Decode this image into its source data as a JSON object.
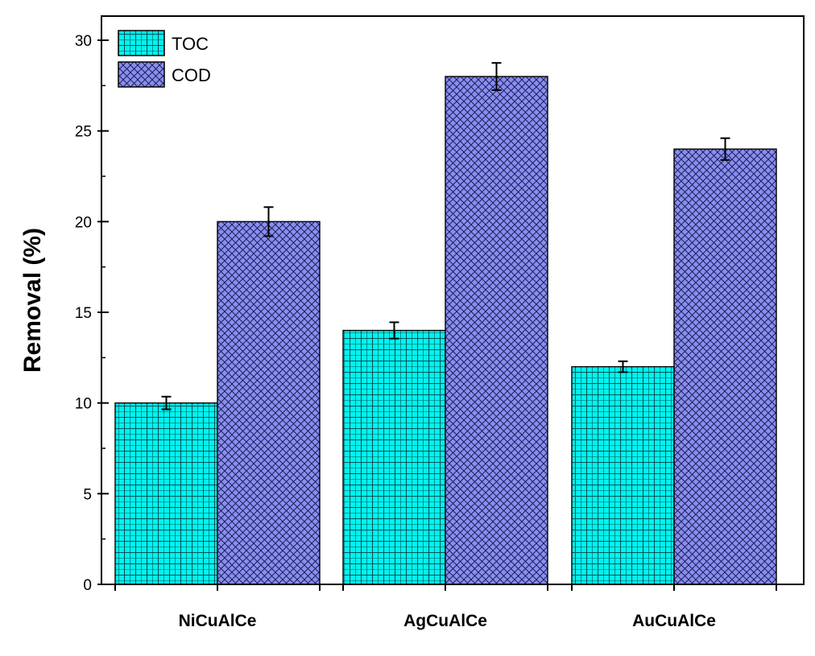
{
  "chart_data": {
    "type": "bar",
    "title": "",
    "xlabel": "",
    "ylabel": "Removal (%)",
    "ylim": [
      0,
      30
    ],
    "yticks": [
      0,
      5,
      10,
      15,
      20,
      25,
      30
    ],
    "categories": [
      "NiCuAlCe",
      "AgCuAlCe",
      "AuCuAlCe"
    ],
    "series": [
      {
        "name": "TOC",
        "values": [
          10,
          14,
          12
        ],
        "errors": [
          0.35,
          0.45,
          0.3
        ],
        "color": "#00f5f0",
        "pattern": "grid"
      },
      {
        "name": "COD",
        "values": [
          20,
          28,
          24
        ],
        "errors": [
          0.8,
          0.75,
          0.6
        ],
        "color": "#8a8ef0",
        "pattern": "crosshatch"
      }
    ],
    "legend_position": "top-left",
    "grid": false
  }
}
